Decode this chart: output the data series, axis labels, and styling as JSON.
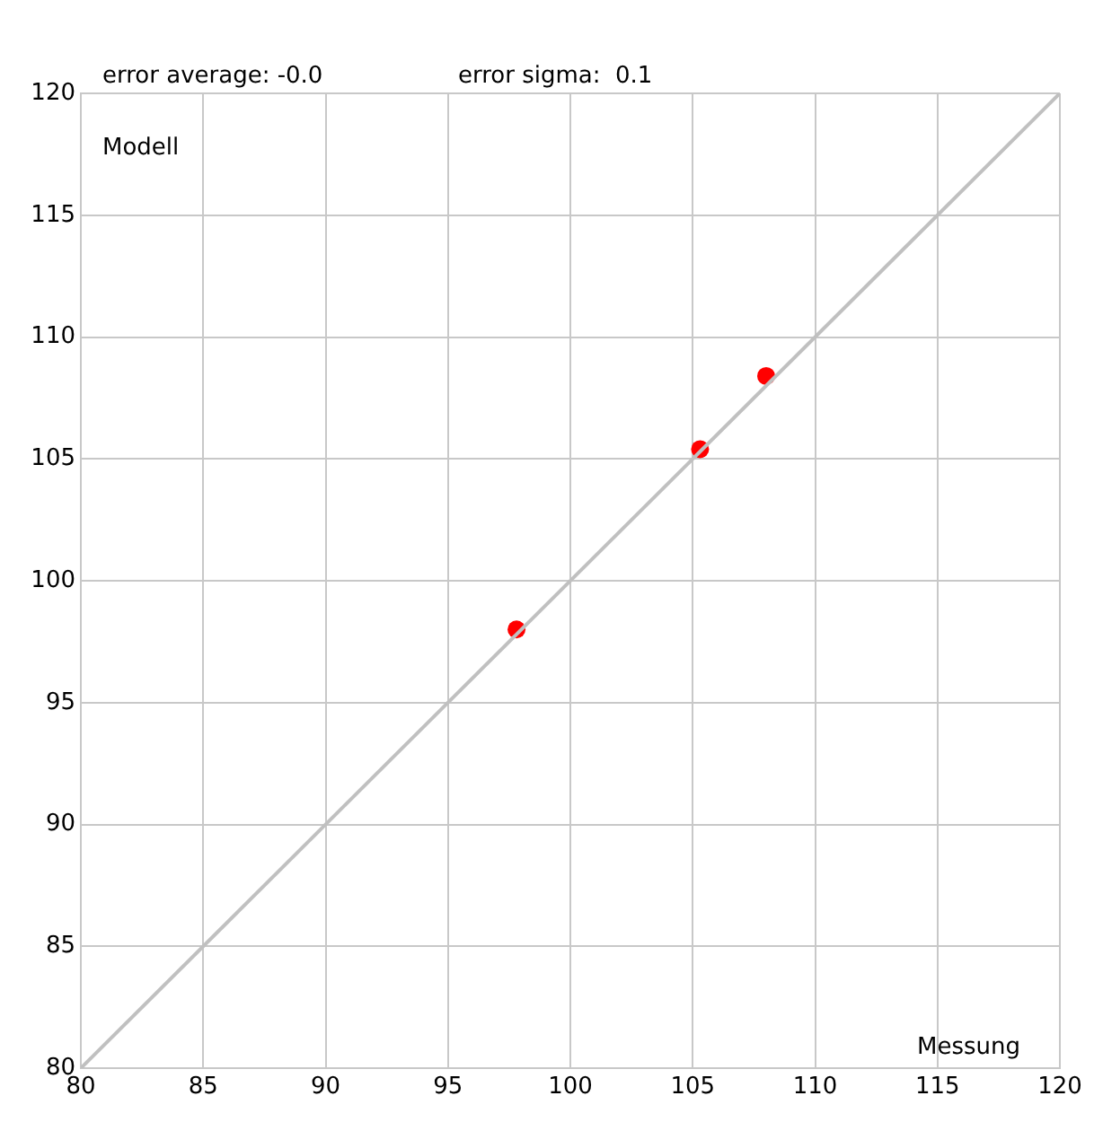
{
  "chart_data": {
    "type": "scatter",
    "xlabel": "Messung",
    "ylabel": "Modell",
    "annotations": [
      "error average: -0.0",
      "error sigma:  0.1"
    ],
    "series": [
      {
        "type": "line",
        "color": "#c0c0c0",
        "marker": "none",
        "x": [
          80,
          120
        ],
        "values": [
          80,
          120
        ]
      },
      {
        "color": "#ff0000",
        "x": [
          97.8,
          105.3,
          108.0
        ],
        "values": [
          98.0,
          105.4,
          108.4
        ]
      }
    ],
    "xlim": [
      80,
      120
    ],
    "ylim": [
      80,
      120
    ],
    "xticks": [
      80,
      85,
      90,
      95,
      100,
      105,
      110,
      115,
      120
    ],
    "yticks": [
      80,
      85,
      90,
      95,
      100,
      105,
      110,
      115,
      120
    ],
    "grid": true,
    "marker": "circle"
  }
}
